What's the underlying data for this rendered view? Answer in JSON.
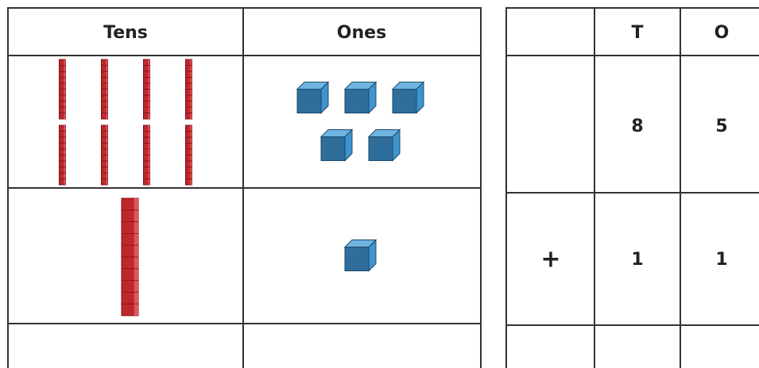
{
  "place_value_chart": {
    "headers": [
      "Tens",
      "Ones"
    ],
    "rows": [
      {
        "tens": 8,
        "ones": 5
      },
      {
        "tens": 1,
        "ones": 1
      }
    ]
  },
  "column_table": {
    "headers": [
      "T",
      "O"
    ],
    "rows": [
      {
        "digits": [
          8,
          5
        ]
      },
      {
        "operator": "+",
        "digits": [
          1,
          1
        ]
      }
    ]
  }
}
